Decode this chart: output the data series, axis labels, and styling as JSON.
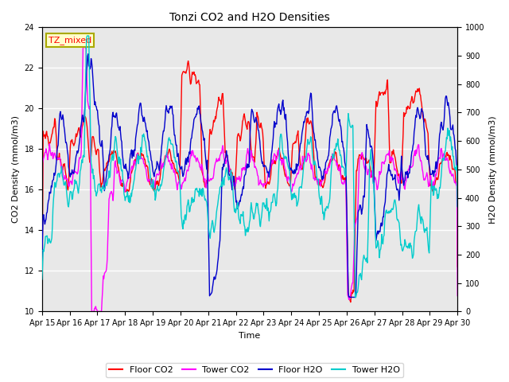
{
  "title": "Tonzi CO2 and H2O Densities",
  "xlabel": "Time",
  "ylabel_left": "CO2 Density (mmol/m3)",
  "ylabel_right": "H2O Density (mmol/m3)",
  "annotation": "TZ_mixed",
  "ylim_left": [
    10,
    24
  ],
  "ylim_right": [
    0,
    1000
  ],
  "yticks_left": [
    10,
    12,
    14,
    16,
    18,
    20,
    22,
    24
  ],
  "yticks_right": [
    0,
    100,
    200,
    300,
    400,
    500,
    600,
    700,
    800,
    900,
    1000
  ],
  "xtick_labels": [
    "Apr 15",
    "Apr 16",
    "Apr 17",
    "Apr 18",
    "Apr 19",
    "Apr 20",
    "Apr 21",
    "Apr 22",
    "Apr 23",
    "Apr 24",
    "Apr 25",
    "Apr 26",
    "Apr 27",
    "Apr 28",
    "Apr 29",
    "Apr 30"
  ],
  "legend_labels": [
    "Floor CO2",
    "Tower CO2",
    "Floor H2O",
    "Tower H2O"
  ],
  "colors": {
    "floor_co2": "#FF0000",
    "tower_co2": "#FF00FF",
    "floor_h2o": "#0000CC",
    "tower_h2o": "#00CCCC"
  },
  "linewidth": 1.0,
  "background_color": "#FFFFFF",
  "plot_bg_color": "#E8E8E8",
  "grid_color": "#FFFFFF",
  "annotation_bg": "#FFFFCC",
  "annotation_border": "#AAAA00"
}
